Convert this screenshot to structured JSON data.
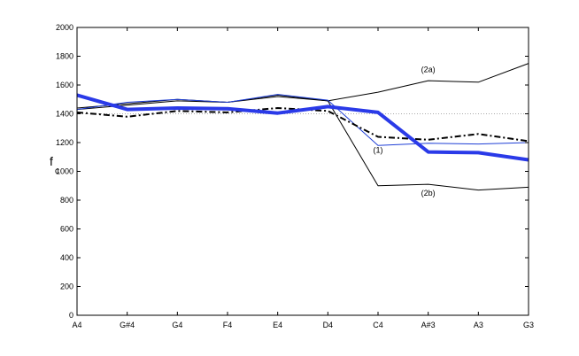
{
  "chart_data": {
    "type": "line",
    "title": "",
    "xlabel": "",
    "ylabel": "f",
    "ylabel_subscript": "c",
    "categories": [
      "A4",
      "G#4",
      "G4",
      "F4",
      "E4",
      "D4",
      "C4",
      "A#3",
      "A3",
      "G3"
    ],
    "yticks": [
      0,
      200,
      400,
      600,
      800,
      1000,
      1200,
      1400,
      1600,
      1800,
      2000
    ],
    "ylim": [
      0,
      2000
    ],
    "grid": false,
    "reference_line": {
      "value": 1400,
      "color": "#aaaaaa",
      "style": "dotted"
    },
    "series": [
      {
        "id": "s2a",
        "color": "#000000",
        "width": 1,
        "dash": "",
        "values": [
          1430,
          1460,
          1490,
          1480,
          1520,
          1490,
          1550,
          1630,
          1620,
          1750
        ]
      },
      {
        "id": "s2b",
        "color": "#000000",
        "width": 1,
        "dash": "",
        "values": [
          1440,
          1470,
          1500,
          1480,
          1530,
          1490,
          900,
          910,
          870,
          890
        ]
      },
      {
        "id": "s1",
        "color": "#1f3fd6",
        "width": 1,
        "dash": "",
        "values": [
          1430,
          1480,
          1500,
          1480,
          1535,
          1495,
          1180,
          1195,
          1190,
          1200
        ]
      },
      {
        "id": "sdash",
        "color": "#000000",
        "width": 2,
        "dash": "7,3,2,3",
        "values": [
          1410,
          1380,
          1420,
          1410,
          1440,
          1420,
          1240,
          1220,
          1260,
          1210
        ]
      },
      {
        "id": "sthick",
        "color": "#2a3ae8",
        "width": 4,
        "dash": "",
        "values": [
          1530,
          1430,
          1440,
          1435,
          1405,
          1450,
          1410,
          1135,
          1130,
          1080
        ]
      }
    ],
    "annotations": [
      {
        "text": "(2a)",
        "x": "A#3",
        "y": 1690
      },
      {
        "text": "(1)",
        "x": "C4",
        "y": 1130
      },
      {
        "text": "(2b)",
        "x": "A#3",
        "y": 830
      }
    ]
  }
}
